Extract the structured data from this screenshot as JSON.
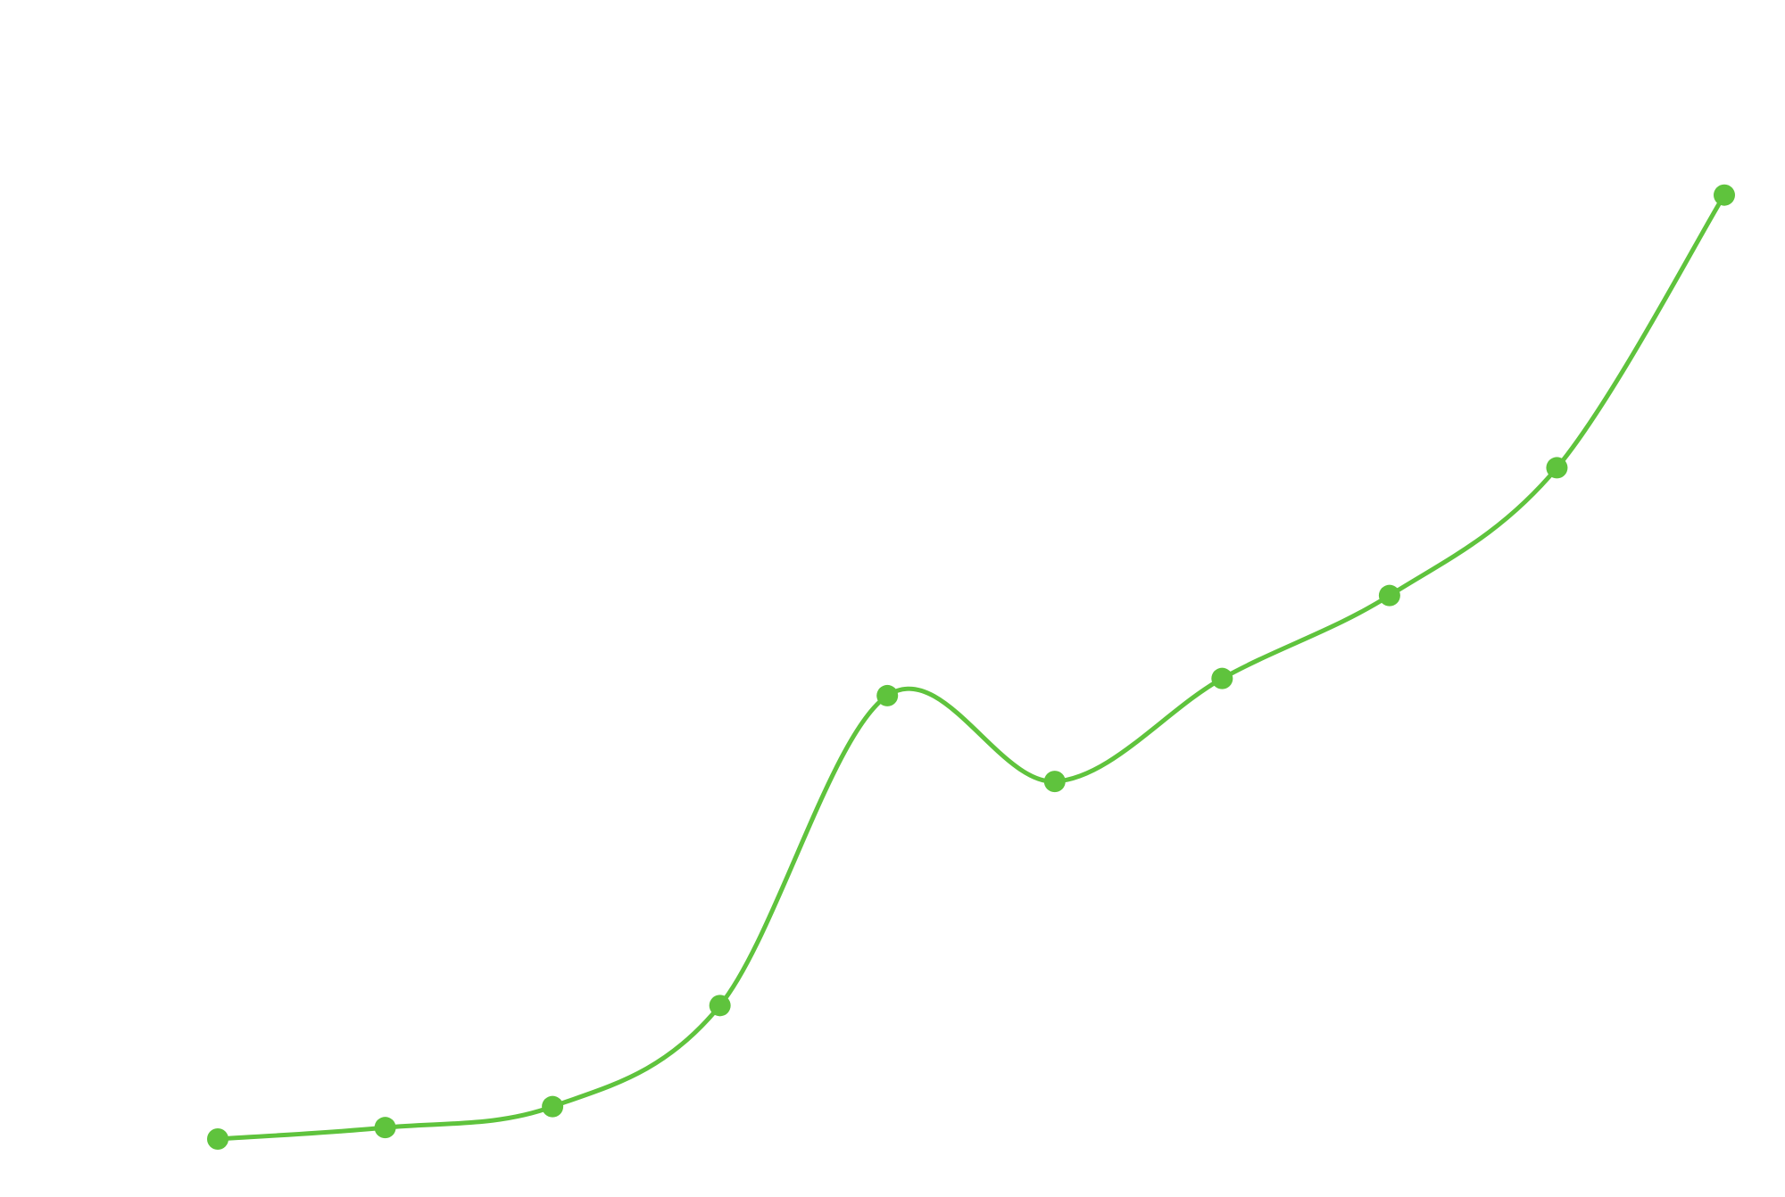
{
  "chart_data": {
    "type": "line",
    "title": "",
    "xlabel": "",
    "ylabel": "",
    "x": [
      1,
      2,
      3,
      4,
      5,
      6,
      7,
      8,
      9,
      10
    ],
    "series": [
      {
        "name": "",
        "values": [
          0.0,
          1.2,
          3.4,
          14.0,
          46.5,
          37.5,
          48.3,
          57.0,
          70.4,
          99.0
        ]
      }
    ],
    "xlim": [
      1,
      10
    ],
    "ylim": [
      0,
      100
    ],
    "grid": false,
    "legend": "none",
    "curve": "smooth",
    "colors": {
      "line": "#5fc33d",
      "marker": "#5fc33d",
      "background": "#ffffff"
    }
  }
}
